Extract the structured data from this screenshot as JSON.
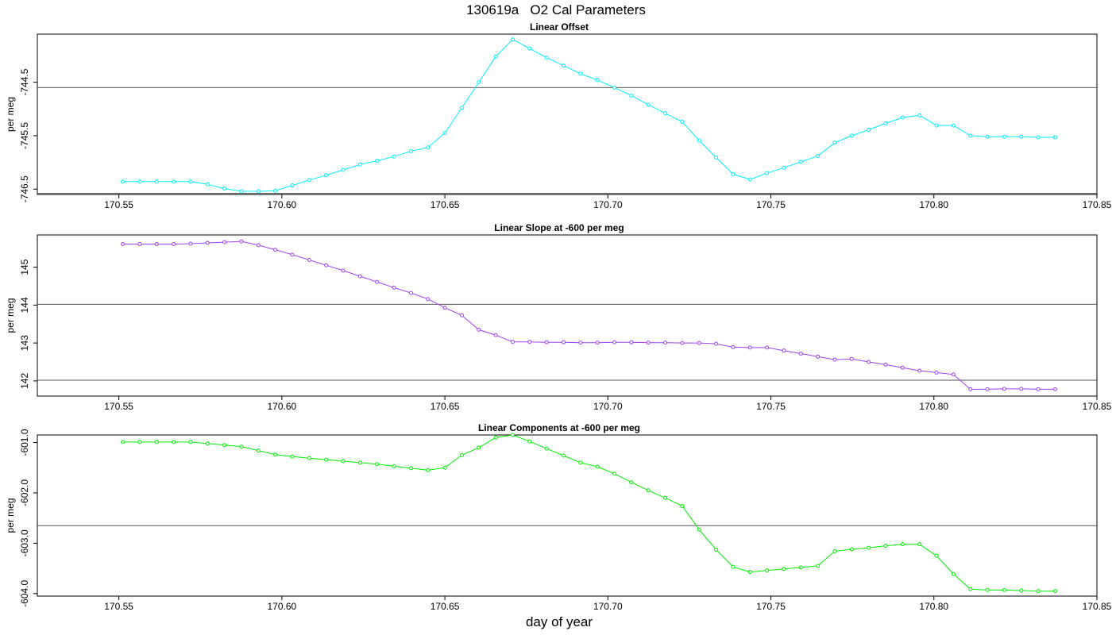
{
  "title": "130619a   O2 Cal Parameters",
  "xlabel": "day of year",
  "chart_data": [
    {
      "type": "line",
      "title": "Linear Offset",
      "ylabel": "per meg",
      "color": "#00f0ff",
      "xlim": [
        170.525,
        170.85
      ],
      "ylim": [
        -746.6,
        -743.6
      ],
      "xticks": [
        170.55,
        170.6,
        170.65,
        170.7,
        170.75,
        170.8,
        170.85
      ],
      "xtick_labels": [
        "170.55",
        "170.60",
        "170.65",
        "170.70",
        "170.75",
        "170.80",
        "170.85"
      ],
      "yticks": [
        -746.5,
        -745.5,
        -744.5
      ],
      "ytick_labels": [
        "-746.5",
        "-745.5",
        "-744.5"
      ],
      "hlines": [
        -744.6,
        -746.58
      ],
      "x": [
        170.5512,
        170.5564,
        170.5616,
        170.5668,
        170.572,
        170.5772,
        170.5824,
        170.5876,
        170.5928,
        170.598,
        170.6032,
        170.6084,
        170.6136,
        170.6188,
        170.624,
        170.6292,
        170.6344,
        170.6396,
        170.6448,
        170.65,
        170.6552,
        170.6604,
        170.6656,
        170.6708,
        170.676,
        170.6812,
        170.6864,
        170.6916,
        170.6968,
        170.702,
        170.7072,
        170.7124,
        170.7176,
        170.7228,
        170.728,
        170.7332,
        170.7384,
        170.7436,
        170.7488,
        170.754,
        170.7592,
        170.7644,
        170.7696,
        170.7748,
        170.78,
        170.7852,
        170.7904,
        170.7956,
        170.8008,
        170.806,
        170.8112,
        170.8164,
        170.8216,
        170.8268,
        170.832,
        170.8372
      ],
      "y": [
        -746.36,
        -746.36,
        -746.36,
        -746.36,
        -746.36,
        -746.41,
        -746.49,
        -746.54,
        -746.54,
        -746.53,
        -746.43,
        -746.33,
        -746.24,
        -746.14,
        -746.04,
        -745.97,
        -745.89,
        -745.79,
        -745.72,
        -745.45,
        -744.98,
        -744.5,
        -744.02,
        -743.7,
        -743.87,
        -744.04,
        -744.19,
        -744.34,
        -744.46,
        -744.6,
        -744.75,
        -744.92,
        -745.08,
        -745.24,
        -745.59,
        -745.91,
        -746.22,
        -746.32,
        -746.2,
        -746.1,
        -745.99,
        -745.88,
        -745.63,
        -745.5,
        -745.39,
        -745.27,
        -745.16,
        -745.12,
        -745.31,
        -745.31,
        -745.5,
        -745.52,
        -745.52,
        -745.52,
        -745.53,
        -745.53
      ]
    },
    {
      "type": "line",
      "title": "Linear Slope at -600 per meg",
      "ylabel": "per meg",
      "color": "#a040f0",
      "xlim": [
        170.525,
        170.85
      ],
      "ylim": [
        141.6,
        145.85
      ],
      "xticks": [
        170.55,
        170.6,
        170.65,
        170.7,
        170.75,
        170.8,
        170.85
      ],
      "xtick_labels": [
        "170.55",
        "170.60",
        "170.65",
        "170.70",
        "170.75",
        "170.80",
        "170.85"
      ],
      "yticks": [
        142,
        143,
        144,
        145
      ],
      "ytick_labels": [
        "142",
        "143",
        "144",
        "145"
      ],
      "hlines": [
        144.02,
        142.02
      ],
      "x": [
        170.5512,
        170.5564,
        170.5616,
        170.5668,
        170.572,
        170.5772,
        170.5824,
        170.5876,
        170.5928,
        170.598,
        170.6032,
        170.6084,
        170.6136,
        170.6188,
        170.624,
        170.6292,
        170.6344,
        170.6396,
        170.6448,
        170.65,
        170.6552,
        170.6604,
        170.6656,
        170.6708,
        170.676,
        170.6812,
        170.6864,
        170.6916,
        170.6968,
        170.702,
        170.7072,
        170.7124,
        170.7176,
        170.7228,
        170.728,
        170.7332,
        170.7384,
        170.7436,
        170.7488,
        170.754,
        170.7592,
        170.7644,
        170.7696,
        170.7748,
        170.78,
        170.7852,
        170.7904,
        170.7956,
        170.8008,
        170.806,
        170.8112,
        170.8164,
        170.8216,
        170.8268,
        170.832,
        170.8372
      ],
      "y": [
        145.61,
        145.61,
        145.61,
        145.61,
        145.62,
        145.64,
        145.66,
        145.68,
        145.58,
        145.46,
        145.33,
        145.19,
        145.05,
        144.91,
        144.76,
        144.61,
        144.46,
        144.32,
        144.16,
        143.93,
        143.73,
        143.35,
        143.21,
        143.03,
        143.03,
        143.02,
        143.02,
        143.01,
        143.01,
        143.02,
        143.02,
        143.01,
        143.01,
        143.0,
        143.0,
        142.98,
        142.89,
        142.88,
        142.88,
        142.8,
        142.72,
        142.64,
        142.56,
        142.58,
        142.5,
        142.43,
        142.35,
        142.27,
        142.22,
        142.17,
        141.78,
        141.78,
        141.79,
        141.79,
        141.78,
        141.78
      ]
    },
    {
      "type": "line",
      "title": "Linear Components at -600 per meg",
      "ylabel": "per meg",
      "color": "#00f000",
      "xlim": [
        170.525,
        170.85
      ],
      "ylim": [
        -604.05,
        -600.85
      ],
      "xticks": [
        170.55,
        170.6,
        170.65,
        170.7,
        170.75,
        170.8,
        170.85
      ],
      "xtick_labels": [
        "170.55",
        "170.60",
        "170.65",
        "170.70",
        "170.75",
        "170.80",
        "170.85"
      ],
      "yticks": [
        -604.0,
        -603.0,
        -602.0,
        -601.0
      ],
      "ytick_labels": [
        "-604.0",
        "-603.0",
        "-602.0",
        "-601.0"
      ],
      "hlines": [
        -602.65
      ],
      "x": [
        170.5512,
        170.5564,
        170.5616,
        170.5668,
        170.572,
        170.5772,
        170.5824,
        170.5876,
        170.5928,
        170.598,
        170.6032,
        170.6084,
        170.6136,
        170.6188,
        170.624,
        170.6292,
        170.6344,
        170.6396,
        170.6448,
        170.65,
        170.6552,
        170.6604,
        170.6656,
        170.6708,
        170.676,
        170.6812,
        170.6864,
        170.6916,
        170.6968,
        170.702,
        170.7072,
        170.7124,
        170.7176,
        170.7228,
        170.728,
        170.7332,
        170.7384,
        170.7436,
        170.7488,
        170.754,
        170.7592,
        170.7644,
        170.7696,
        170.7748,
        170.78,
        170.7852,
        170.7904,
        170.7956,
        170.8008,
        170.806,
        170.8112,
        170.8164,
        170.8216,
        170.8268,
        170.832,
        170.8372
      ],
      "y": [
        -600.99,
        -600.99,
        -600.99,
        -600.99,
        -600.99,
        -601.02,
        -601.05,
        -601.08,
        -601.16,
        -601.24,
        -601.28,
        -601.31,
        -601.34,
        -601.37,
        -601.4,
        -601.43,
        -601.47,
        -601.51,
        -601.55,
        -601.5,
        -601.25,
        -601.1,
        -600.9,
        -600.85,
        -600.98,
        -601.12,
        -601.26,
        -601.4,
        -601.48,
        -601.62,
        -601.79,
        -601.95,
        -602.1,
        -602.26,
        -602.73,
        -603.13,
        -603.47,
        -603.57,
        -603.54,
        -603.51,
        -603.48,
        -603.45,
        -603.16,
        -603.12,
        -603.09,
        -603.05,
        -603.02,
        -603.02,
        -603.25,
        -603.61,
        -603.91,
        -603.93,
        -603.93,
        -603.94,
        -603.95,
        -603.95
      ]
    }
  ]
}
